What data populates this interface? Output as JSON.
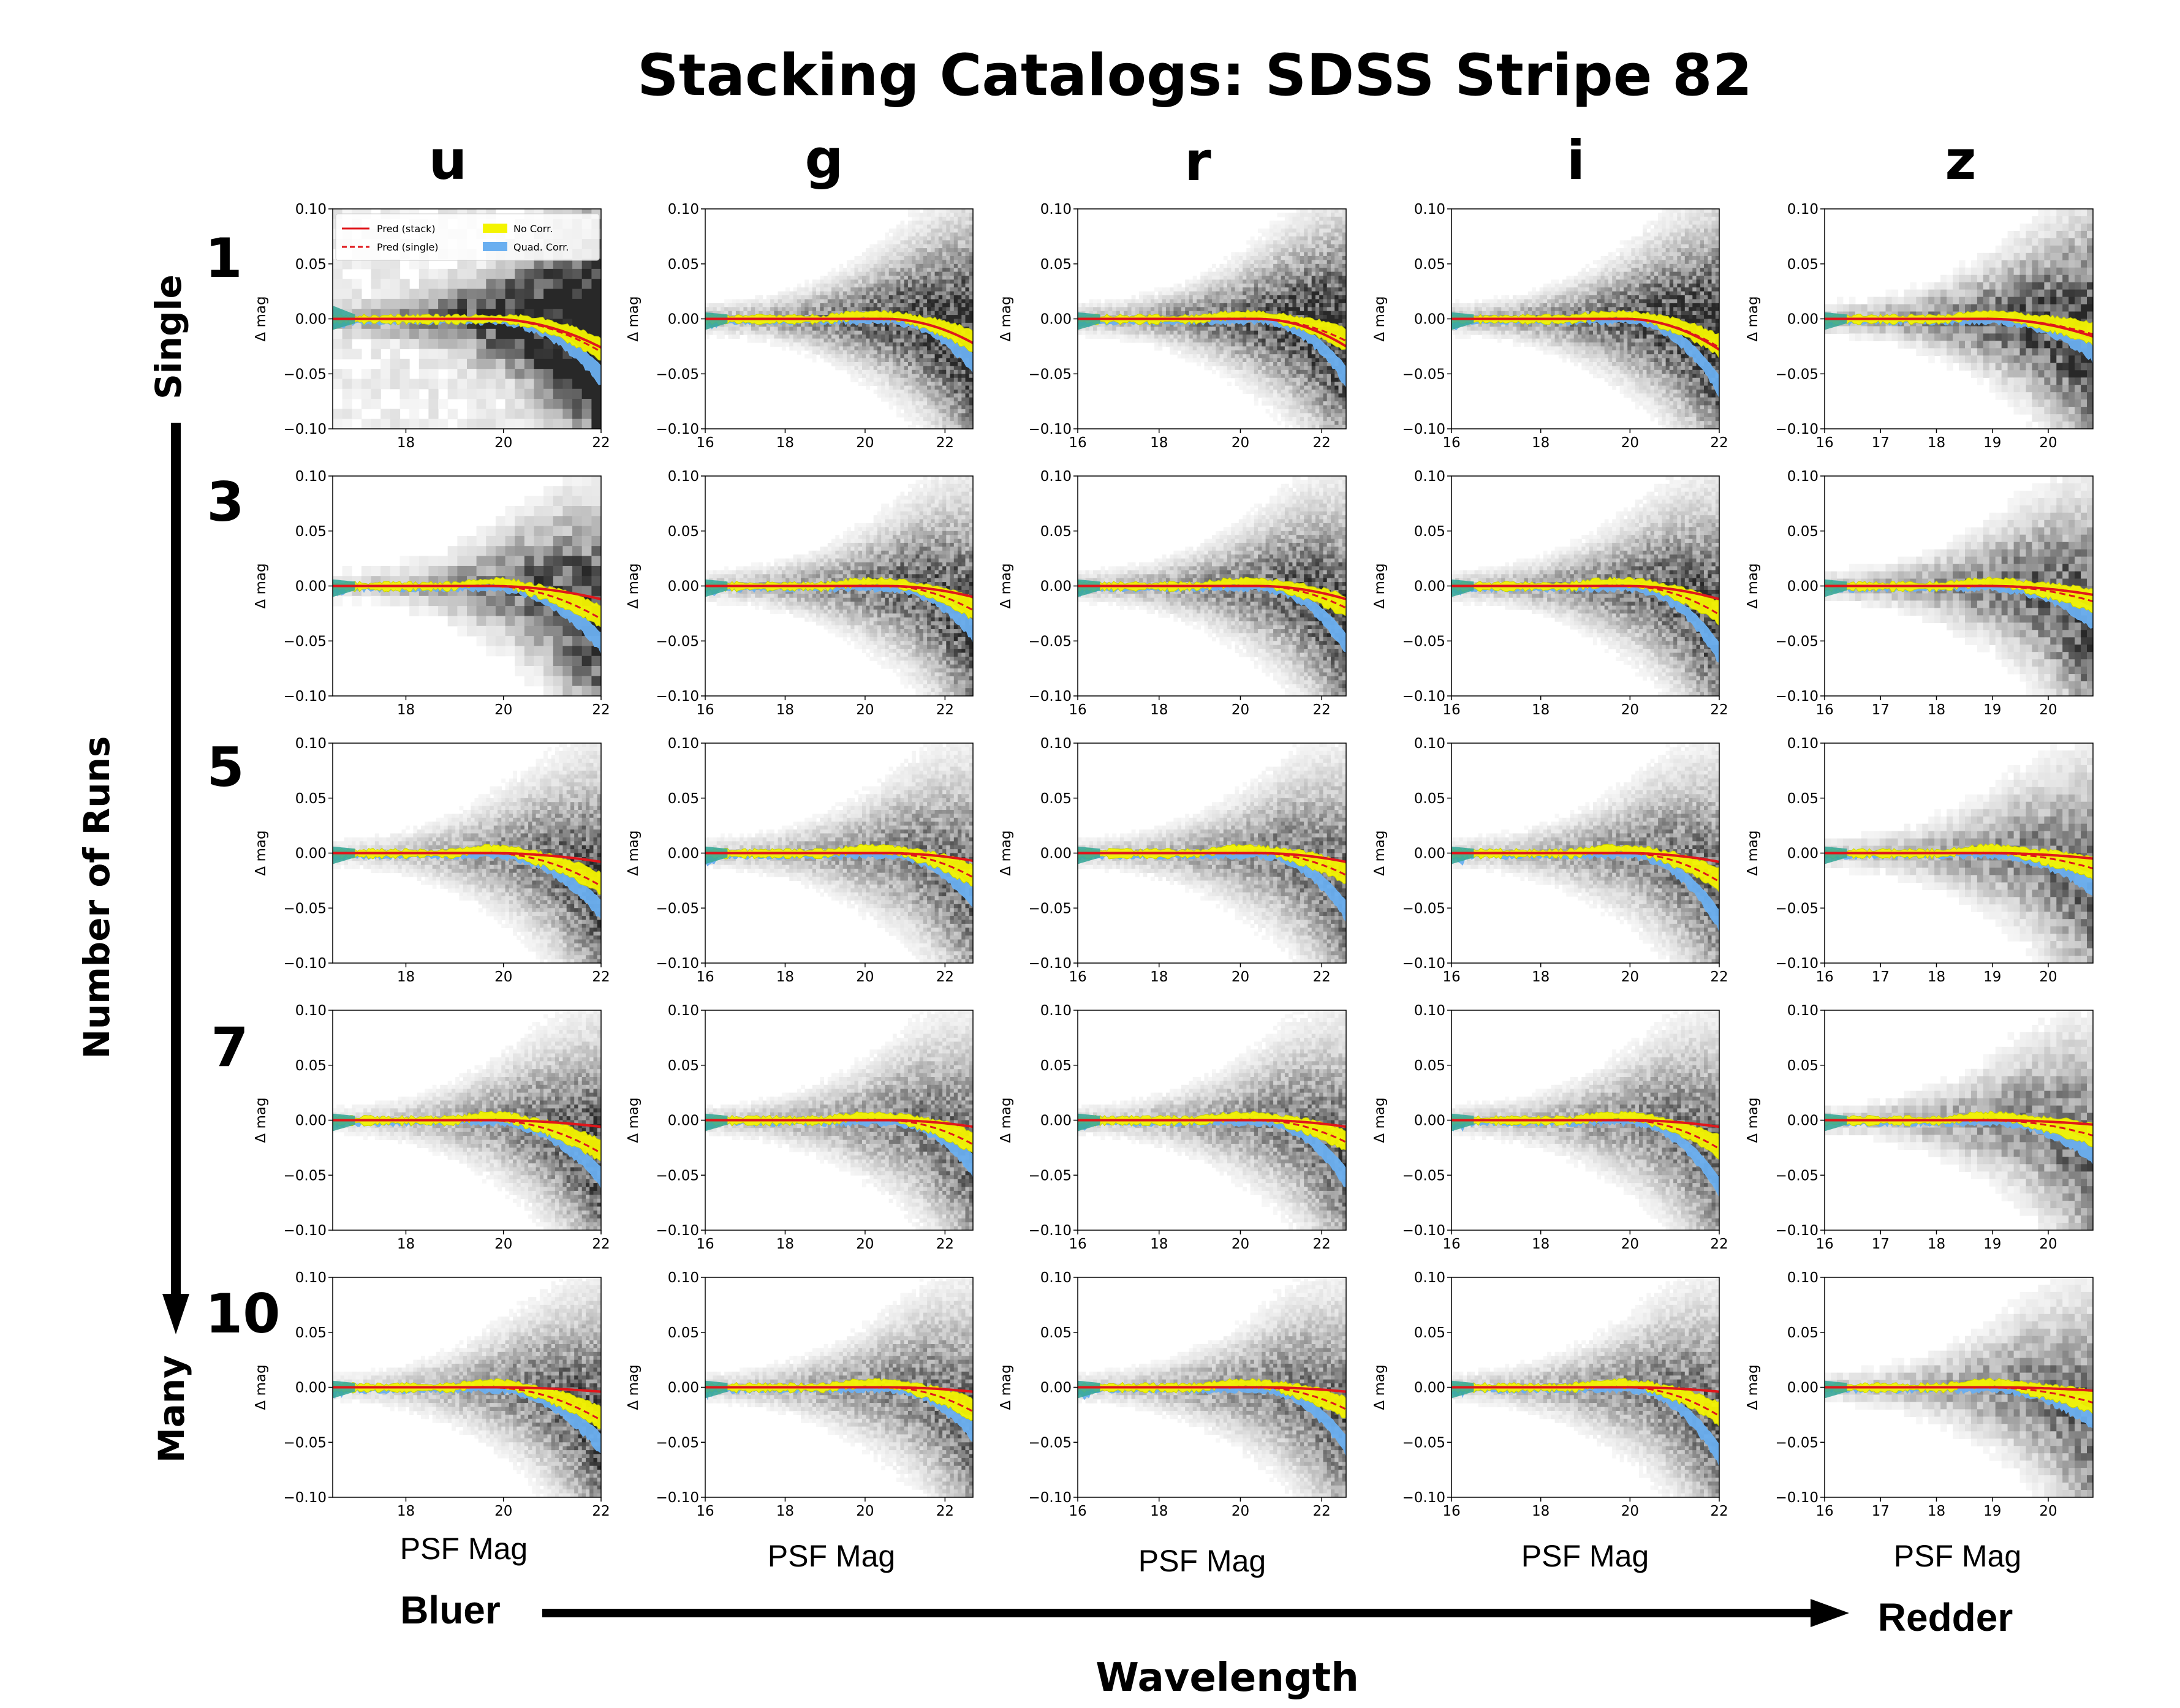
{
  "figure": {
    "title": "Stacking Catalogs: SDSS Stripe 82",
    "bands": [
      "u",
      "g",
      "r",
      "i",
      "z"
    ],
    "runs": [
      "1",
      "3",
      "5",
      "7",
      "10"
    ],
    "row_axis_label": "Number of Runs",
    "row_top_label": "Single",
    "row_bottom_label": "Many",
    "col_axis_label": "Wavelength",
    "col_left_label": "Bluer",
    "col_right_label": "Redder",
    "panel_xlabel": "PSF Mag",
    "panel_ylabel": "Δ mag"
  },
  "legend": {
    "entries": [
      "Pred (stack)",
      "Pred (single)",
      "No Corr.",
      "Quad. Corr."
    ]
  },
  "colors": {
    "pred_stack": "#e0161b",
    "pred_single": "#e0161b",
    "no_corr": "#f4f400",
    "quad_corr": "#6aaff0",
    "overlap": "#3aa89a",
    "no_corr_edge": "#c8d200"
  },
  "chart_data": {
    "type": "heatmap",
    "grid": "5x5 small multiples (rows: number of runs, columns: SDSS band)",
    "ylim": [
      -0.1,
      0.1
    ],
    "yticks": [
      "0.10",
      "0.05",
      "0.00",
      "−0.05",
      "−0.10"
    ],
    "columns": [
      {
        "band": "u",
        "xlim": [
          16.5,
          22
        ],
        "xticks": [
          18,
          20,
          22
        ],
        "drop_start": 20.0,
        "pred_stack_end": -0.006,
        "pred_single_end": -0.03
      },
      {
        "band": "g",
        "xlim": [
          16,
          22.7
        ],
        "xticks": [
          16,
          18,
          20,
          22
        ],
        "drop_start": 20.8,
        "pred_stack_end": -0.006,
        "pred_single_end": -0.022
      },
      {
        "band": "r",
        "xlim": [
          16,
          22.6
        ],
        "xticks": [
          16,
          18,
          20,
          22
        ],
        "drop_start": 20.7,
        "pred_stack_end": -0.006,
        "pred_single_end": -0.02
      },
      {
        "band": "i",
        "xlim": [
          16,
          22
        ],
        "xticks": [
          16,
          18,
          20,
          22
        ],
        "drop_start": 20.2,
        "pred_stack_end": -0.006,
        "pred_single_end": -0.026
      },
      {
        "band": "z",
        "xlim": [
          16,
          20.8
        ],
        "xticks": [
          16,
          17,
          18,
          19,
          20
        ],
        "drop_start": 19.2,
        "pred_stack_end": -0.004,
        "pred_single_end": -0.014
      }
    ],
    "rows": [
      {
        "runs": 1,
        "pred_stack_end_by_band": [
          -0.026,
          -0.022,
          -0.025,
          -0.028,
          -0.016
        ]
      },
      {
        "runs": 3,
        "pred_stack_end_by_band": [
          -0.012,
          -0.01,
          -0.012,
          -0.012,
          -0.008
        ]
      },
      {
        "runs": 5,
        "pred_stack_end_by_band": [
          -0.008,
          -0.007,
          -0.008,
          -0.008,
          -0.005
        ]
      },
      {
        "runs": 7,
        "pred_stack_end_by_band": [
          -0.006,
          -0.006,
          -0.006,
          -0.006,
          -0.004
        ]
      },
      {
        "runs": 10,
        "pred_stack_end_by_band": [
          -0.004,
          -0.004,
          -0.004,
          -0.004,
          -0.003
        ]
      }
    ]
  }
}
